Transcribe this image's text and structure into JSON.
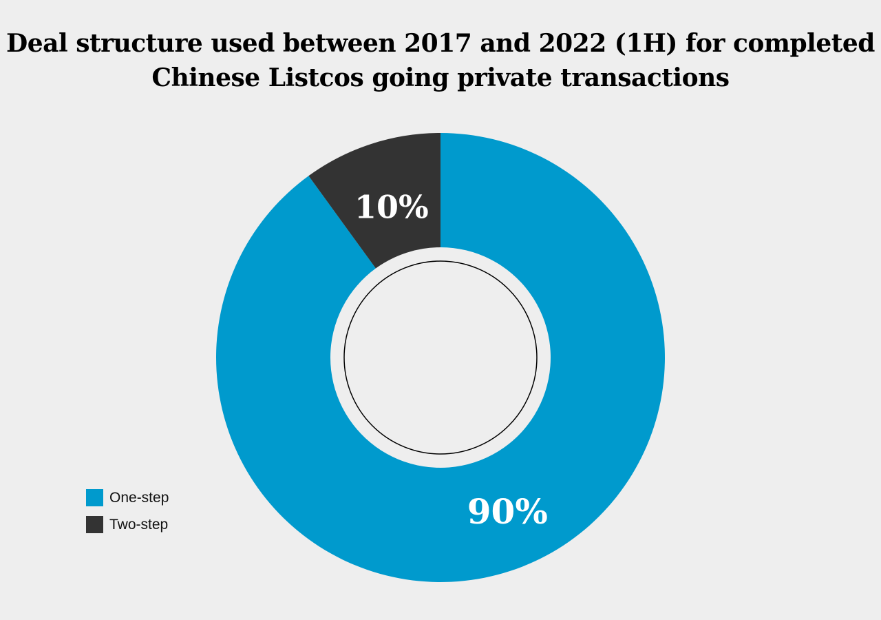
{
  "chart_data": {
    "type": "pie",
    "subtype": "donut",
    "title": [
      "Deal structure used between 2017 and 2022 (1H) for completed",
      "Chinese Listcos going private transactions"
    ],
    "categories": [
      "One-step",
      "Two-step"
    ],
    "values": [
      90,
      10
    ],
    "labels": [
      "90%",
      "10%"
    ],
    "colors": [
      "#009acd",
      "#333333"
    ],
    "legend": {
      "position": "bottom-left",
      "entries": [
        "One-step",
        "Two-step"
      ]
    }
  },
  "background": "#eeeeee"
}
